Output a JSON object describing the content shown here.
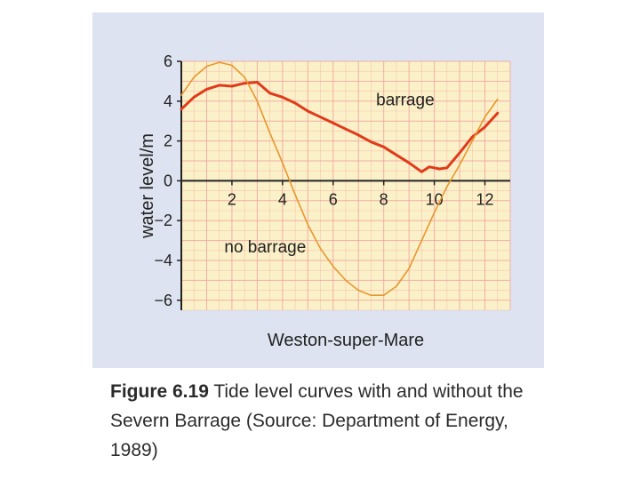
{
  "chart_data": {
    "type": "line",
    "title": "",
    "xlabel": "Weston-super-Mare",
    "ylabel": "water level/m",
    "xlim": [
      0,
      13
    ],
    "ylim": [
      -6.5,
      6
    ],
    "x_ticks": [
      2,
      4,
      6,
      8,
      10,
      12
    ],
    "y_ticks": [
      6,
      4,
      2,
      0,
      -2,
      -4,
      -6
    ],
    "x_tick_labels": [
      "2",
      "4",
      "6",
      "8",
      "10",
      "12"
    ],
    "y_tick_labels": [
      "6",
      "4",
      "2",
      "0",
      "−2",
      "−4",
      "−6"
    ],
    "grid": true,
    "series": [
      {
        "name": "barrage",
        "color": "#e03a1a",
        "points": [
          [
            0.0,
            3.6
          ],
          [
            0.5,
            4.2
          ],
          [
            1.0,
            4.6
          ],
          [
            1.5,
            4.8
          ],
          [
            2.0,
            4.75
          ],
          [
            2.5,
            4.9
          ],
          [
            3.0,
            4.95
          ],
          [
            3.5,
            4.4
          ],
          [
            4.0,
            4.2
          ],
          [
            4.5,
            3.9
          ],
          [
            5.0,
            3.5
          ],
          [
            5.5,
            3.2
          ],
          [
            6.0,
            2.9
          ],
          [
            6.5,
            2.6
          ],
          [
            7.0,
            2.3
          ],
          [
            7.5,
            1.95
          ],
          [
            8.0,
            1.7
          ],
          [
            8.5,
            1.3
          ],
          [
            9.0,
            0.9
          ],
          [
            9.5,
            0.45
          ],
          [
            9.8,
            0.7
          ],
          [
            10.2,
            0.6
          ],
          [
            10.5,
            0.65
          ],
          [
            11.0,
            1.4
          ],
          [
            11.5,
            2.2
          ],
          [
            12.0,
            2.7
          ],
          [
            12.5,
            3.4
          ]
        ]
      },
      {
        "name": "no barrage",
        "color": "#e8962e",
        "points": [
          [
            0.0,
            4.3
          ],
          [
            0.5,
            5.2
          ],
          [
            1.0,
            5.75
          ],
          [
            1.5,
            5.95
          ],
          [
            2.0,
            5.8
          ],
          [
            2.5,
            5.2
          ],
          [
            3.0,
            4.0
          ],
          [
            3.5,
            2.4
          ],
          [
            4.0,
            0.9
          ],
          [
            4.5,
            -0.7
          ],
          [
            5.0,
            -2.2
          ],
          [
            5.5,
            -3.4
          ],
          [
            6.0,
            -4.3
          ],
          [
            6.5,
            -5.0
          ],
          [
            7.0,
            -5.5
          ],
          [
            7.5,
            -5.75
          ],
          [
            8.0,
            -5.75
          ],
          [
            8.5,
            -5.3
          ],
          [
            9.0,
            -4.4
          ],
          [
            9.5,
            -3.0
          ],
          [
            10.0,
            -1.6
          ],
          [
            10.5,
            -0.3
          ],
          [
            11.0,
            0.8
          ],
          [
            11.5,
            2.0
          ],
          [
            12.0,
            3.2
          ],
          [
            12.5,
            4.1
          ]
        ]
      }
    ],
    "annotations": [
      {
        "text": "barrage",
        "x": 7.7,
        "y": 3.8
      },
      {
        "text": "no barrage",
        "x": 1.7,
        "y": -3.6
      }
    ]
  },
  "caption": {
    "label": "Figure 6.19",
    "text": " Tide level curves with and without the Severn Barrage (Source: Department of Energy, 1989)"
  }
}
